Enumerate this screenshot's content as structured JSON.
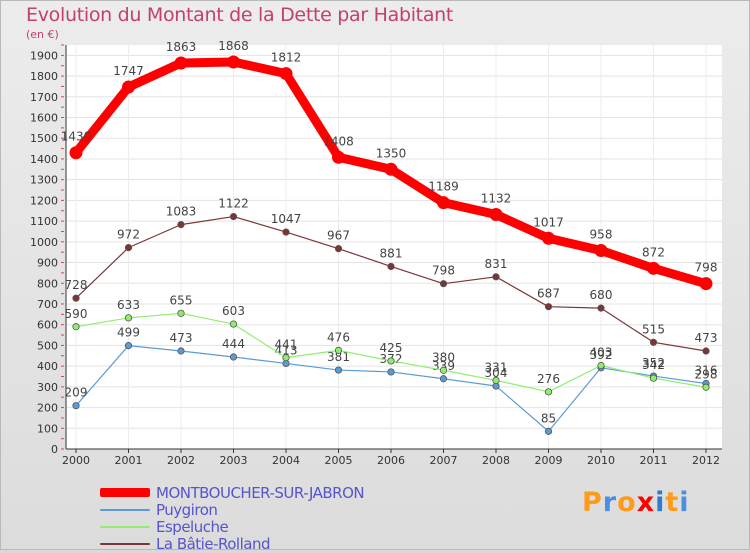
{
  "chart_data": {
    "type": "line",
    "title": "Evolution du Montant de la Dette par Habitant",
    "unit_label": "(en €)",
    "x": [
      "2000",
      "2001",
      "2002",
      "2003",
      "2004",
      "2005",
      "2006",
      "2007",
      "2008",
      "2009",
      "2010",
      "2011",
      "2012"
    ],
    "ylim": [
      0,
      1950
    ],
    "yticks": [
      0,
      100,
      200,
      300,
      400,
      500,
      600,
      700,
      800,
      900,
      1000,
      1100,
      1200,
      1300,
      1400,
      1500,
      1600,
      1700,
      1800,
      1900
    ],
    "grid": true,
    "legend_position": "bottom-left",
    "series": [
      {
        "name": "MONTBOUCHER-SUR-JABRON",
        "color": "#ff0000",
        "values": [
          1430,
          1747,
          1863,
          1868,
          1812,
          1408,
          1350,
          1189,
          1132,
          1017,
          958,
          872,
          798
        ]
      },
      {
        "name": "Puygiron",
        "color": "#5b9bd5",
        "values": [
          209,
          499,
          473,
          444,
          413,
          381,
          372,
          339,
          304,
          85,
          392,
          352,
          316
        ]
      },
      {
        "name": "Espeluche",
        "color": "#90ee6f",
        "values": [
          590,
          633,
          655,
          603,
          441,
          476,
          425,
          380,
          331,
          276,
          403,
          342,
          298
        ]
      },
      {
        "name": "La Bâtie-Rolland",
        "color": "#7b3535",
        "values": [
          728,
          972,
          1083,
          1122,
          1047,
          967,
          881,
          798,
          831,
          687,
          680,
          515,
          473
        ]
      }
    ]
  },
  "logo": {
    "text": "Proxiti",
    "colors": [
      "#ff9a1a",
      "#4a90e2",
      "#ff9a1a",
      "#ff0000",
      "#2e7bd6",
      "#ff9a1a",
      "#4a90e2"
    ]
  }
}
